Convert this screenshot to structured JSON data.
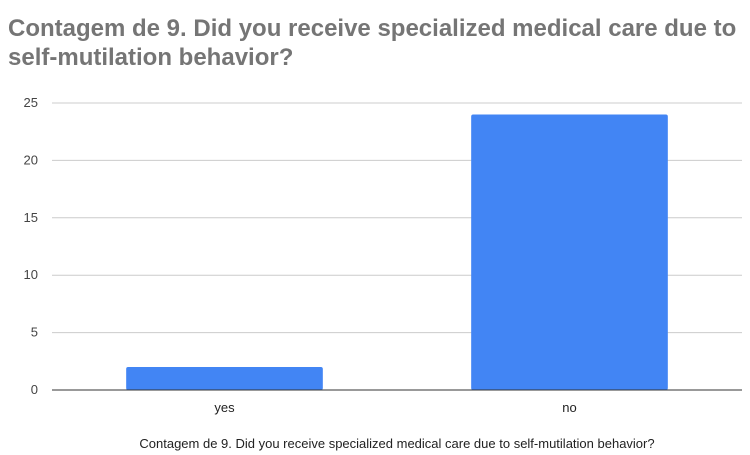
{
  "chart_data": {
    "type": "bar",
    "title": "Contagem de 9. Did you receive specialized medical care due to self-mutilation behavior?",
    "xlabel": "Contagem de 9. Did you receive specialized medical care due to self-mutilation behavior?",
    "ylabel": "",
    "categories": [
      "yes",
      "no"
    ],
    "values": [
      2,
      24
    ],
    "ylim": [
      0,
      25
    ],
    "yticks": [
      0,
      5,
      10,
      15,
      20,
      25
    ],
    "grid": true,
    "legend": "none",
    "bar_color": "#4285f4",
    "grid_color": "#cccccc",
    "axis_color": "#333333"
  }
}
